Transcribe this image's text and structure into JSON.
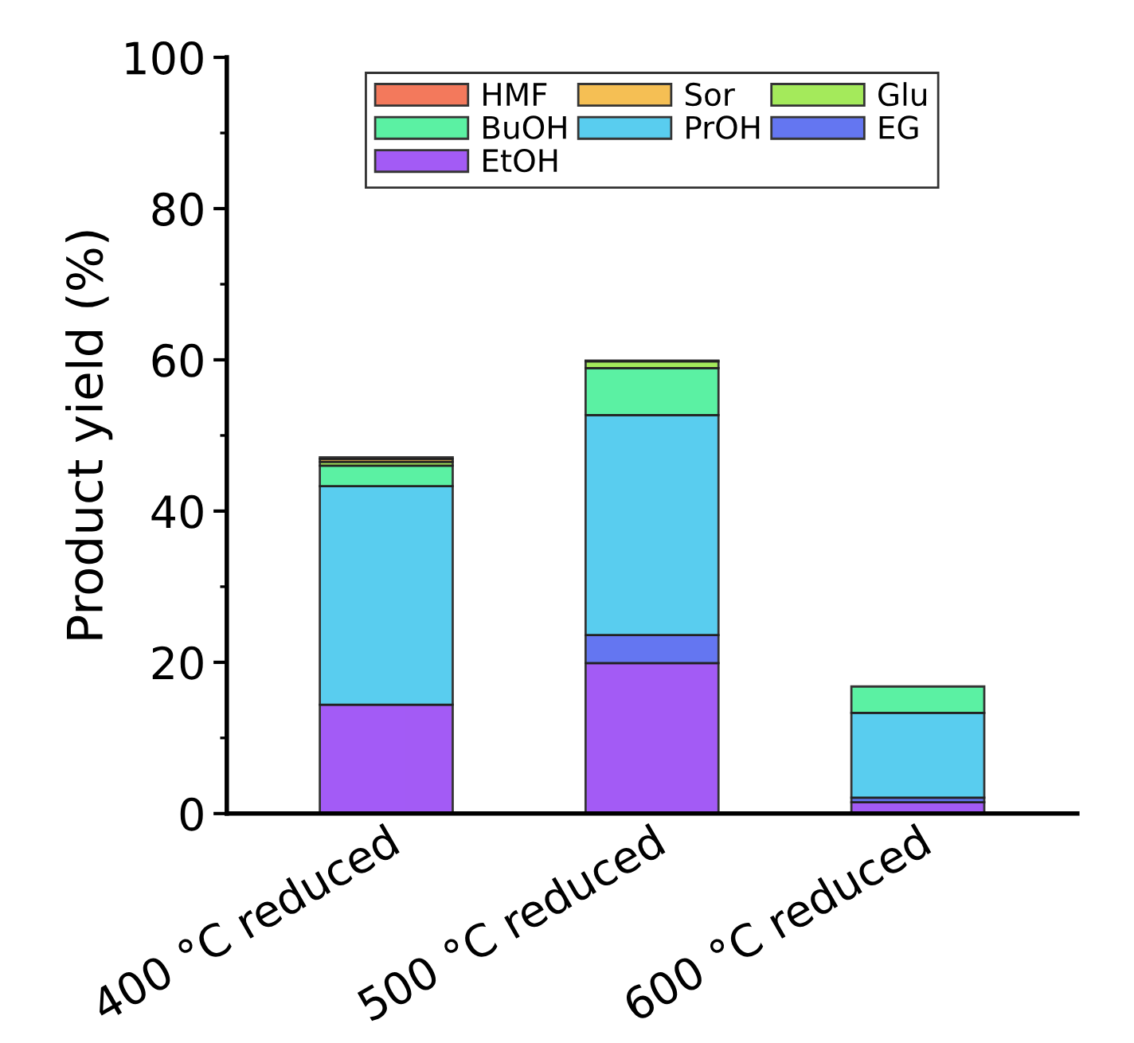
{
  "chart_data": {
    "type": "bar",
    "stacked": true,
    "ylabel": "Product yield (%)",
    "categories": [
      "400 °C reduced",
      "500 °C reduced",
      "600 °C reduced"
    ],
    "series": [
      {
        "name": "EtOH",
        "color": "#9a4af5",
        "values": [
          14.4,
          19.9,
          1.5
        ]
      },
      {
        "name": "EG",
        "color": "#5468f0",
        "values": [
          null,
          3.7,
          0.6
        ]
      },
      {
        "name": "PrOH",
        "color": "#48c8ee",
        "values": [
          28.9,
          29.1,
          11.2
        ]
      },
      {
        "name": "BuOH",
        "color": "#4af09a",
        "values": [
          2.7,
          6.2,
          3.5
        ]
      },
      {
        "name": "Glu",
        "color": "#9be84a",
        "values": [
          0.5,
          0.9,
          null
        ]
      },
      {
        "name": "Sor",
        "color": "#f5b942",
        "values": [
          0.4,
          0.1,
          null
        ]
      },
      {
        "name": "HMF",
        "color": "#f26b4b",
        "values": [
          0.2,
          null,
          null
        ]
      }
    ],
    "ylim": [
      0,
      100
    ],
    "yticks": [
      0,
      20,
      40,
      60,
      80,
      100
    ],
    "legend": "top",
    "grid": false
  }
}
